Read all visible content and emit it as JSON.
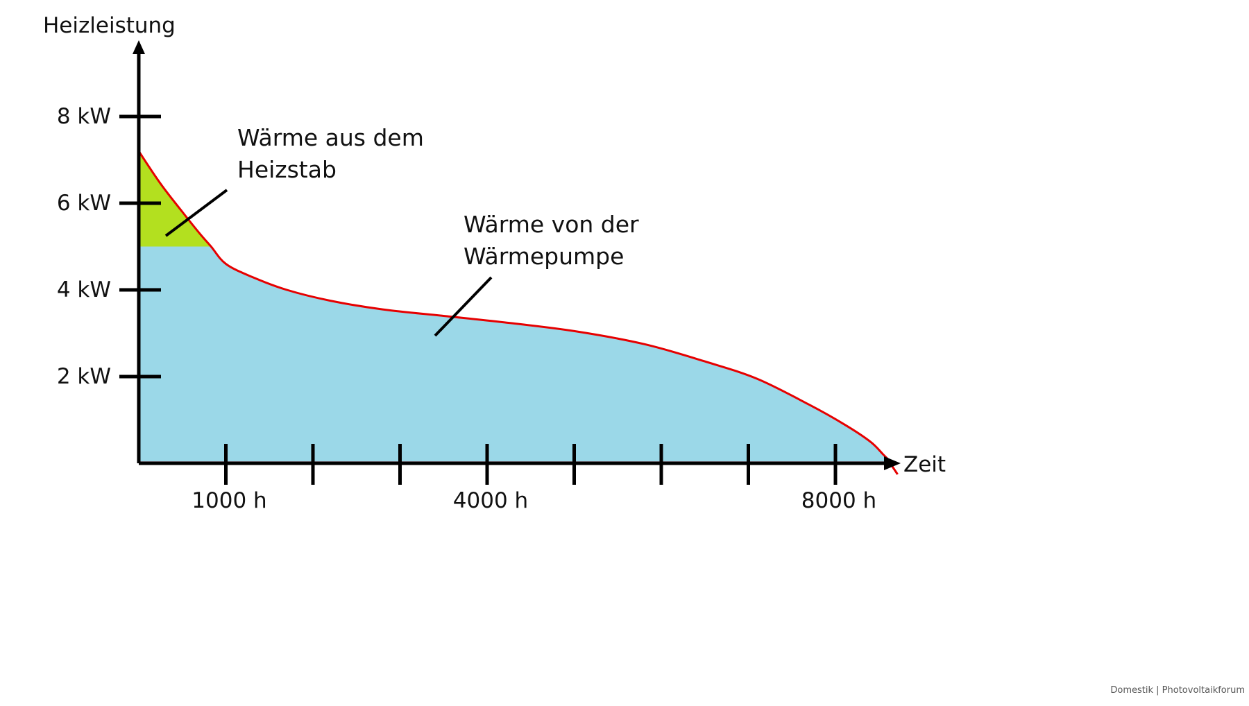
{
  "chart_data": {
    "type": "area",
    "ylabel": "Heizleistung",
    "xlabel": "Zeit",
    "y_ticks": [
      {
        "value": 2,
        "label": "2 kW"
      },
      {
        "value": 4,
        "label": "4 kW"
      },
      {
        "value": 6,
        "label": "6 kW"
      },
      {
        "value": 8,
        "label": "8 kW"
      }
    ],
    "x_ticks": [
      1000,
      2000,
      3000,
      4000,
      5000,
      6000,
      7000,
      8000
    ],
    "x_tick_labels": [
      {
        "value": 1000,
        "label": "1000 h"
      },
      {
        "value": 4000,
        "label": "4000 h"
      },
      {
        "value": 8000,
        "label": "8000 h"
      }
    ],
    "xlim": [
      0,
      8760
    ],
    "ylim": [
      0,
      8
    ],
    "curve": {
      "x": [
        0,
        250,
        500,
        700,
        830,
        1000,
        1300,
        1700,
        2200,
        2800,
        3500,
        4200,
        5000,
        5800,
        6500,
        7100,
        7700,
        8100,
        8400,
        8550,
        8650
      ],
      "y": [
        7.2,
        6.45,
        5.8,
        5.3,
        5.0,
        4.6,
        4.3,
        4.0,
        3.75,
        3.55,
        3.4,
        3.25,
        3.05,
        2.75,
        2.35,
        1.95,
        1.35,
        0.9,
        0.5,
        0.2,
        0.0
      ]
    },
    "heat_pump_max": 5.0,
    "colors": {
      "heat_pump": "#9bd8e8",
      "heating_rod": "#b3e01f",
      "curve": "#e60000",
      "axis": "#000000"
    },
    "annotations": [
      {
        "name": "heating-rod",
        "lines": [
          "Wärme aus dem",
          "Heizstab"
        ]
      },
      {
        "name": "heat-pump",
        "lines": [
          "Wärme von der",
          "Wärmepumpe"
        ]
      }
    ]
  },
  "credit": "Domestik | Photovoltaikforum"
}
